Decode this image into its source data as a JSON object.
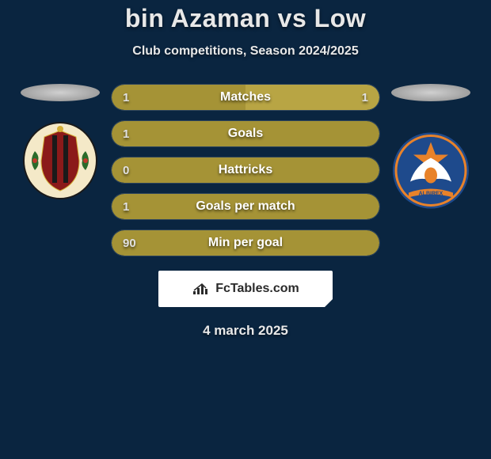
{
  "title": "bin Azaman vs Low",
  "subtitle": "Club competitions, Season 2024/2025",
  "date": "4 march 2025",
  "attribution": "FcTables.com",
  "colors": {
    "bar_fill": "#a59336",
    "bar_highlight": "#b8a544",
    "background": "#0a2540"
  },
  "stats": [
    {
      "label": "Matches",
      "left_val": "1",
      "right_val": "1",
      "left_pct": 50,
      "right_pct": 50,
      "mode": "split"
    },
    {
      "label": "Goals",
      "left_val": "1",
      "right_val": "",
      "left_pct": 100,
      "right_pct": 0,
      "mode": "full"
    },
    {
      "label": "Hattricks",
      "left_val": "0",
      "right_val": "",
      "left_pct": 100,
      "right_pct": 0,
      "mode": "full"
    },
    {
      "label": "Goals per match",
      "left_val": "1",
      "right_val": "",
      "left_pct": 100,
      "right_pct": 0,
      "mode": "full"
    },
    {
      "label": "Min per goal",
      "left_val": "90",
      "right_val": "",
      "left_pct": 100,
      "right_pct": 0,
      "mode": "full"
    }
  ],
  "left_club": {
    "name": "left-club"
  },
  "right_club": {
    "name": "right-club"
  }
}
